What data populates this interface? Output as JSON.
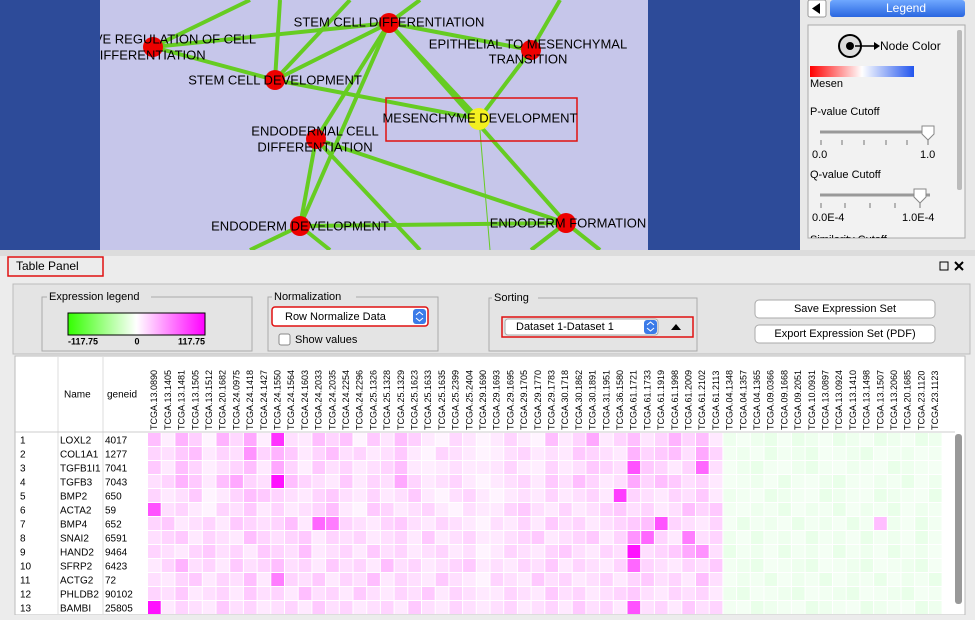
{
  "network": {
    "nodes": [
      {
        "lines": [
          "VE REGULATION OF CELL",
          "DIFFERENTIATION"
        ]
      },
      {
        "lines": [
          "STEM CELL DIFFERENTIATION"
        ]
      },
      {
        "lines": [
          "EPITHELIAL TO MESENCHYMAL",
          "TRANSITION"
        ]
      },
      {
        "lines": [
          "STEM CELL DEVELOPMENT"
        ]
      },
      {
        "lines": [
          "MESENCHYME DEVELOPMENT"
        ]
      },
      {
        "lines": [
          "ENDODERMAL CELL",
          "DIFFERENTIATION"
        ]
      },
      {
        "lines": [
          "ENDODERM DEVELOPMENT"
        ]
      },
      {
        "lines": [
          "ENDODERM FORMATION"
        ]
      }
    ]
  },
  "legend_panel": {
    "button": "Legend",
    "node_color": "Node Color",
    "gradient_label": "Mesen",
    "pvalue": {
      "title": "P-value Cutoff",
      "min": "0.0",
      "max": "1.0"
    },
    "qvalue": {
      "title": "Q-value Cutoff",
      "min": "0.0E-4",
      "max": "1.0E-4"
    },
    "similarity": "Similarity Cutoff"
  },
  "table_panel": {
    "title": "Table Panel",
    "expression_legend": {
      "title": "Expression legend",
      "min": -117.75,
      "mid": 0,
      "max": 117.75
    },
    "normalization": {
      "title": "Normalization",
      "selected": "Row Normalize Data",
      "checkbox": "Show values"
    },
    "sorting": {
      "title": "Sorting",
      "selected": "Dataset 1-Dataset 1"
    },
    "buttons": [
      "Save Expression Set",
      "Export Expression Set (PDF)"
    ]
  },
  "table": {
    "headers": [
      "Name",
      "geneid"
    ],
    "columns": [
      "TCGA.13.0890",
      "TCGA.13.1405",
      "TCGA.13.1481",
      "TCGA.13.1505",
      "TCGA.13.1512",
      "TCGA.20.1682",
      "TCGA.24.0975",
      "TCGA.24.1418",
      "TCGA.24.1427",
      "TCGA.24.1550",
      "TCGA.24.1564",
      "TCGA.24.1603",
      "TCGA.24.2033",
      "TCGA.24.2035",
      "TCGA.24.2254",
      "TCGA.24.2296",
      "TCGA.25.1326",
      "TCGA.25.1328",
      "TCGA.25.1329",
      "TCGA.25.1623",
      "TCGA.25.1633",
      "TCGA.25.1635",
      "TCGA.25.2399",
      "TCGA.25.2404",
      "TCGA.29.1690",
      "TCGA.29.1693",
      "TCGA.29.1695",
      "TCGA.29.1705",
      "TCGA.29.1770",
      "TCGA.29.1783",
      "TCGA.30.1718",
      "TCGA.30.1862",
      "TCGA.30.1891",
      "TCGA.31.1951",
      "TCGA.36.1580",
      "TCGA.61.1721",
      "TCGA.61.1733",
      "TCGA.61.1919",
      "TCGA.61.1998",
      "TCGA.61.2009",
      "TCGA.61.2102",
      "TCGA.61.2113",
      "TCGA.04.1348",
      "TCGA.04.1357",
      "TCGA.04.1365",
      "TCGA.09.0366",
      "TCGA.09.1668",
      "TCGA.09.2051",
      "TCGA.10.0931",
      "TCGA.13.0897",
      "TCGA.13.0924",
      "TCGA.13.1410",
      "TCGA.13.1498",
      "TCGA.13.1507",
      "TCGA.13.2060",
      "TCGA.20.1685",
      "TCGA.23.1120",
      "TCGA.23.1123"
    ],
    "rows": [
      {
        "index": 1,
        "name": "LOXL2",
        "geneid": 4017,
        "values": [
          30,
          8,
          35,
          22,
          5,
          35,
          18,
          40,
          8,
          95,
          15,
          10,
          30,
          20,
          28,
          5,
          25,
          12,
          30,
          22,
          10,
          5,
          18,
          12,
          5,
          10,
          20,
          10,
          5,
          30,
          10,
          20,
          40,
          10,
          20,
          30,
          12,
          20,
          35,
          20,
          30,
          10,
          -8,
          -5,
          -8,
          -10,
          -5,
          -10,
          -8,
          -5,
          -10,
          -8,
          -5,
          -10,
          -8,
          -5,
          -10,
          -8
        ]
      },
      {
        "index": 2,
        "name": "COL1A1",
        "geneid": 1277,
        "values": [
          20,
          15,
          25,
          30,
          10,
          20,
          15,
          50,
          20,
          35,
          25,
          10,
          20,
          30,
          15,
          20,
          10,
          15,
          25,
          10,
          5,
          20,
          15,
          10,
          5,
          8,
          15,
          20,
          10,
          15,
          10,
          25,
          20,
          15,
          10,
          35,
          20,
          25,
          30,
          15,
          40,
          20,
          -6,
          -8,
          -5,
          -10,
          -6,
          -8,
          -10,
          -5,
          -6,
          -8,
          -10,
          -5,
          -6,
          -8,
          -5,
          -6
        ]
      },
      {
        "index": 3,
        "name": "TGFB1I1",
        "geneid": 7041,
        "values": [
          25,
          10,
          30,
          20,
          8,
          15,
          20,
          30,
          10,
          40,
          20,
          8,
          25,
          15,
          20,
          10,
          15,
          20,
          30,
          10,
          8,
          10,
          15,
          10,
          10,
          12,
          20,
          10,
          8,
          20,
          10,
          15,
          25,
          20,
          15,
          80,
          25,
          20,
          10,
          20,
          70,
          15,
          -5,
          -8,
          -10,
          -6,
          -5,
          -8,
          -10,
          -6,
          -5,
          -8,
          -6,
          -5,
          -10,
          -8,
          -6,
          -5
        ]
      },
      {
        "index": 4,
        "name": "TGFB3",
        "geneid": 7043,
        "values": [
          15,
          20,
          35,
          25,
          10,
          30,
          40,
          20,
          15,
          110,
          30,
          20,
          15,
          10,
          25,
          10,
          20,
          15,
          40,
          20,
          10,
          15,
          20,
          10,
          5,
          10,
          15,
          20,
          10,
          25,
          15,
          30,
          20,
          10,
          15,
          40,
          20,
          30,
          25,
          15,
          20,
          10,
          -5,
          -6,
          -8,
          -5,
          -10,
          -6,
          -5,
          -8,
          -10,
          -6,
          -5,
          -8,
          -6,
          -10,
          -5,
          -8
        ]
      },
      {
        "index": 5,
        "name": "BMP2",
        "geneid": 650,
        "values": [
          20,
          10,
          15,
          25,
          5,
          10,
          20,
          30,
          25,
          20,
          15,
          10,
          20,
          25,
          15,
          10,
          20,
          10,
          15,
          25,
          10,
          5,
          15,
          20,
          10,
          5,
          10,
          15,
          10,
          20,
          10,
          15,
          20,
          10,
          90,
          20,
          15,
          10,
          20,
          15,
          25,
          10,
          -8,
          -6,
          -5,
          -10,
          -8,
          -6,
          -5,
          -10,
          -8,
          -6,
          -5,
          -10,
          -8,
          -6,
          -5,
          -10
        ]
      },
      {
        "index": 6,
        "name": "ACTA2",
        "geneid": 59,
        "values": [
          80,
          15,
          20,
          10,
          5,
          20,
          15,
          25,
          10,
          20,
          10,
          15,
          20,
          30,
          10,
          5,
          25,
          20,
          10,
          15,
          20,
          10,
          5,
          15,
          10,
          10,
          20,
          25,
          15,
          10,
          20,
          10,
          15,
          20,
          25,
          15,
          20,
          10,
          15,
          30,
          20,
          25,
          -6,
          -5,
          -8,
          -6,
          -10,
          -5,
          -8,
          -6,
          -10,
          -5,
          -8,
          -6,
          -10,
          -5,
          -8,
          -6
        ]
      },
      {
        "index": 7,
        "name": "BMP4",
        "geneid": 652,
        "values": [
          20,
          25,
          10,
          15,
          20,
          10,
          25,
          20,
          15,
          20,
          30,
          10,
          70,
          60,
          20,
          15,
          10,
          20,
          25,
          15,
          10,
          20,
          15,
          10,
          5,
          15,
          10,
          20,
          10,
          25,
          15,
          20,
          10,
          15,
          20,
          25,
          30,
          80,
          20,
          15,
          10,
          20,
          -5,
          -10,
          -6,
          -8,
          -5,
          -10,
          -6,
          -8,
          -5,
          -10,
          -6,
          30,
          -8,
          -5,
          -10,
          -6
        ]
      },
      {
        "index": 8,
        "name": "SNAI2",
        "geneid": 6591,
        "values": [
          15,
          20,
          25,
          10,
          20,
          15,
          10,
          30,
          20,
          15,
          20,
          25,
          10,
          20,
          15,
          20,
          10,
          15,
          20,
          10,
          25,
          10,
          15,
          20,
          10,
          10,
          15,
          20,
          25,
          10,
          15,
          20,
          25,
          10,
          20,
          50,
          70,
          20,
          10,
          60,
          15,
          20,
          -8,
          -5,
          -10,
          -6,
          -8,
          -5,
          -10,
          -6,
          -8,
          -5,
          -10,
          -6,
          -8,
          -5,
          -10,
          -6
        ]
      },
      {
        "index": 9,
        "name": "HAND2",
        "geneid": 9464,
        "values": [
          20,
          15,
          10,
          20,
          25,
          15,
          20,
          10,
          25,
          20,
          15,
          30,
          10,
          15,
          20,
          10,
          25,
          15,
          20,
          10,
          15,
          20,
          10,
          15,
          5,
          10,
          20,
          15,
          10,
          20,
          25,
          15,
          10,
          20,
          15,
          110,
          15,
          20,
          25,
          40,
          50,
          15,
          -10,
          -6,
          -8,
          -5,
          -10,
          -6,
          -8,
          -5,
          -10,
          -6,
          -8,
          -5,
          -10,
          -6,
          -8,
          -5
        ]
      },
      {
        "index": 10,
        "name": "SFRP2",
        "geneid": 6423,
        "values": [
          10,
          20,
          35,
          15,
          20,
          10,
          25,
          15,
          20,
          30,
          15,
          20,
          10,
          25,
          15,
          20,
          10,
          30,
          15,
          20,
          10,
          15,
          20,
          25,
          10,
          15,
          10,
          20,
          15,
          25,
          10,
          20,
          15,
          10,
          20,
          70,
          20,
          15,
          10,
          20,
          15,
          25,
          -6,
          -8,
          -10,
          -5,
          -6,
          -8,
          -10,
          -5,
          -6,
          -8,
          -10,
          -5,
          -6,
          -8,
          -10,
          -5
        ]
      },
      {
        "index": 11,
        "name": "ACTG2",
        "geneid": 72,
        "values": [
          15,
          10,
          20,
          25,
          10,
          20,
          15,
          30,
          10,
          60,
          20,
          15,
          25,
          10,
          20,
          15,
          30,
          10,
          20,
          15,
          10,
          25,
          15,
          10,
          5,
          20,
          15,
          10,
          25,
          15,
          20,
          10,
          15,
          20,
          10,
          20,
          25,
          15,
          20,
          10,
          30,
          15,
          -5,
          -8,
          -6,
          -10,
          -5,
          -8,
          -6,
          -10,
          -5,
          -8,
          -6,
          -10,
          -5,
          -8,
          -6,
          -10
        ]
      },
      {
        "index": 12,
        "name": "PHLDB2",
        "geneid": 90102,
        "values": [
          20,
          15,
          25,
          10,
          15,
          20,
          10,
          25,
          15,
          20,
          10,
          30,
          15,
          20,
          10,
          25,
          15,
          10,
          20,
          15,
          25,
          10,
          20,
          15,
          10,
          10,
          20,
          15,
          10,
          25,
          15,
          20,
          10,
          15,
          20,
          25,
          15,
          10,
          20,
          15,
          20,
          10,
          -8,
          -10,
          -5,
          -6,
          -8,
          -10,
          -5,
          -6,
          -8,
          -10,
          -5,
          -6,
          -8,
          -10,
          -5,
          -6
        ]
      },
      {
        "index": 13,
        "name": "BAMBI",
        "geneid": 25805,
        "values": [
          110,
          10,
          20,
          15,
          10,
          25,
          15,
          20,
          10,
          15,
          20,
          10,
          25,
          15,
          20,
          10,
          15,
          20,
          10,
          25,
          15,
          10,
          20,
          15,
          10,
          15,
          20,
          10,
          15,
          20,
          10,
          25,
          15,
          20,
          10,
          80,
          15,
          20,
          10,
          25,
          15,
          20,
          -6,
          -5,
          -10,
          -8,
          -6,
          -5,
          -10,
          -8,
          -6,
          -5,
          -10,
          -8,
          -6,
          -5,
          -10,
          -8
        ]
      }
    ]
  }
}
